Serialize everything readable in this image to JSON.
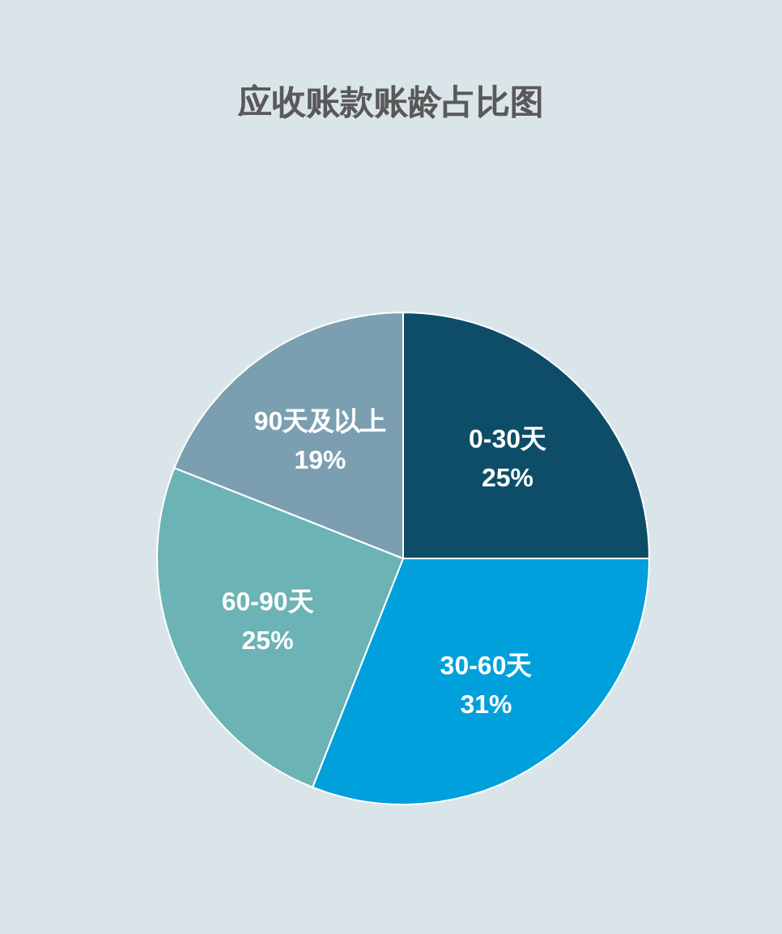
{
  "chart_data": {
    "type": "pie",
    "title": "应收账款账龄占比图",
    "categories": [
      "0-30天",
      "30-60天",
      "60-90天",
      "90天及以上"
    ],
    "values": [
      25,
      31,
      25,
      19
    ],
    "colors": [
      "#0e4d68",
      "#00a0dc",
      "#6bb3b4",
      "#7b9fb1"
    ],
    "value_labels": [
      "25%",
      "31%",
      "25%",
      "19%"
    ]
  }
}
